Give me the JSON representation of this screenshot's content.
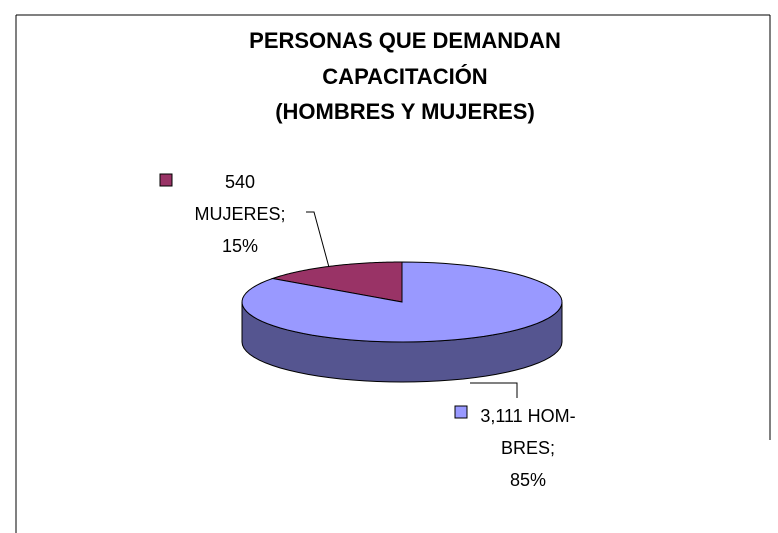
{
  "chart_data": {
    "type": "pie3d",
    "title": [
      "PERSONAS QUE DEMANDAN",
      "CAPACITACIÓN",
      "(HOMBRES Y MUJERES)"
    ],
    "categories": [
      "540 MUJERES;",
      "3,111 HOM-BRES;"
    ],
    "values": [
      15,
      85
    ],
    "value_labels": [
      "15%",
      "85%"
    ],
    "colors": [
      "#993366",
      "#9999ff"
    ],
    "side_colors": [
      "#5c1f3d",
      "#555590"
    ]
  }
}
